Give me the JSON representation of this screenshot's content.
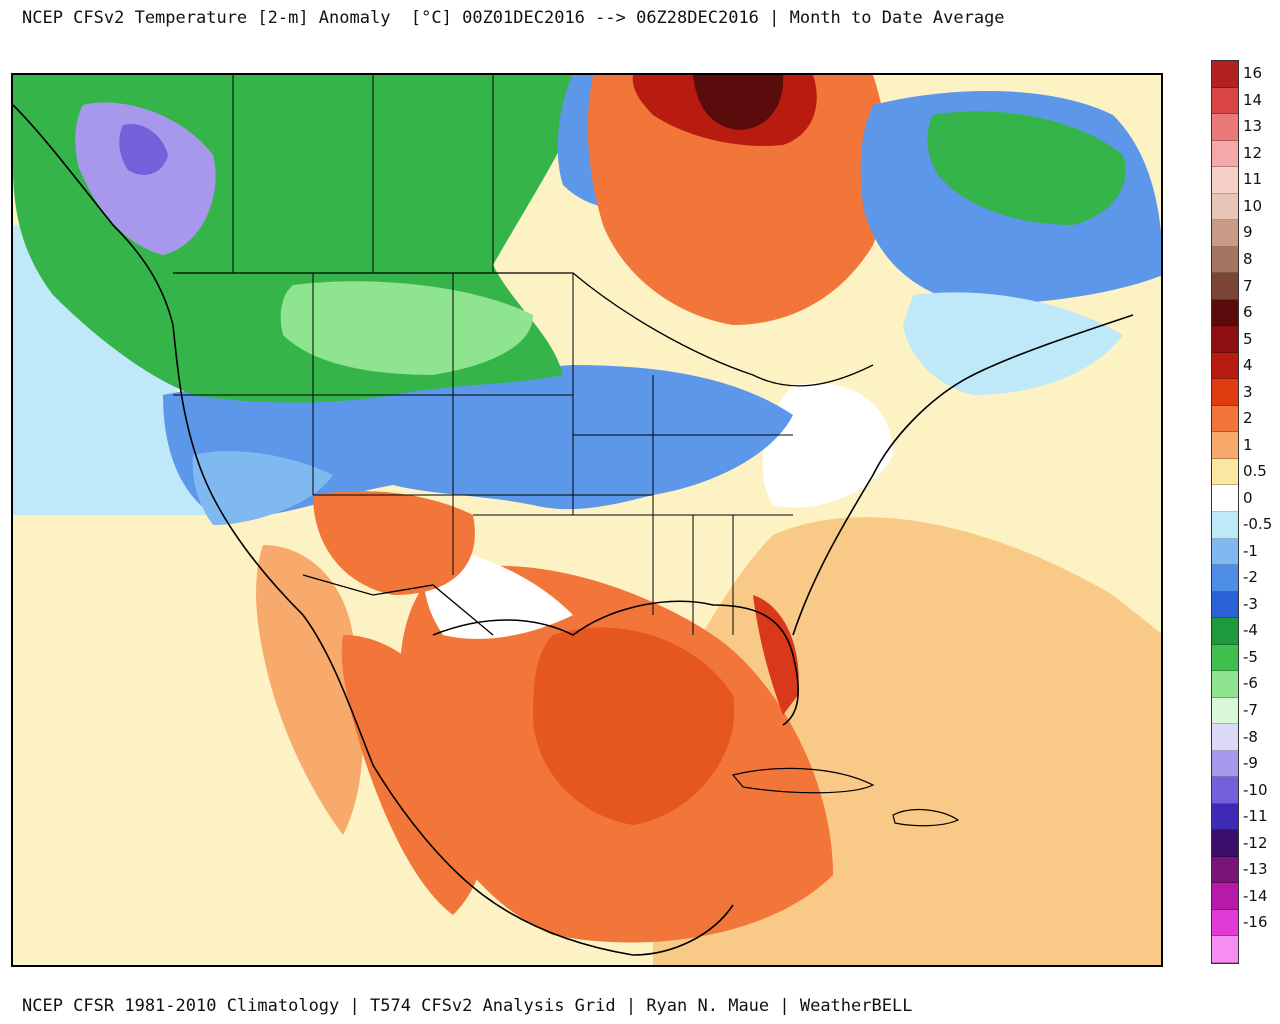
{
  "title": "NCEP CFSv2 Temperature [2-m] Anomaly  [°C] 00Z01DEC2016 --> 06Z28DEC2016 | Month to Date Average",
  "footer": "NCEP CFSR 1981-2010 Climatology | T574 CFSv2 Analysis Grid | Ryan N. Maue | WeatherBELL",
  "legend": {
    "items": [
      {
        "label": "16",
        "color": "#b22222"
      },
      {
        "label": "14",
        "color": "#d94545"
      },
      {
        "label": "13",
        "color": "#ea7a7a"
      },
      {
        "label": "12",
        "color": "#f4a8a8"
      },
      {
        "label": "11",
        "color": "#f8d0ca"
      },
      {
        "label": "10",
        "color": "#e7c6b8"
      },
      {
        "label": "9",
        "color": "#c89b87"
      },
      {
        "label": "8",
        "color": "#a67562"
      },
      {
        "label": "7",
        "color": "#7a4534"
      },
      {
        "label": "6",
        "color": "#5a0c0c"
      },
      {
        "label": "5",
        "color": "#8e1010"
      },
      {
        "label": "4",
        "color": "#b81c10"
      },
      {
        "label": "3",
        "color": "#e03c12"
      },
      {
        "label": "2",
        "color": "#f2763a"
      },
      {
        "label": "1",
        "color": "#f7aa6c"
      },
      {
        "label": "0.5",
        "color": "#fce7a2"
      },
      {
        "label": "0",
        "color": "#ffffff"
      },
      {
        "label": "-0.5",
        "color": "#bfe8f8"
      },
      {
        "label": "-1",
        "color": "#7fb9f0"
      },
      {
        "label": "-2",
        "color": "#4f8ee6"
      },
      {
        "label": "-3",
        "color": "#2a62d6"
      },
      {
        "label": "-4",
        "color": "#1e9a3c"
      },
      {
        "label": "-5",
        "color": "#3fc04e"
      },
      {
        "label": "-6",
        "color": "#8fe48f"
      },
      {
        "label": "-7",
        "color": "#d8f8d8"
      },
      {
        "label": "-8",
        "color": "#dcd8f8"
      },
      {
        "label": "-9",
        "color": "#a898ec"
      },
      {
        "label": "-10",
        "color": "#7460d8"
      },
      {
        "label": "-11",
        "color": "#3f2ab8"
      },
      {
        "label": "-12",
        "color": "#3a0e6a"
      },
      {
        "label": "-13",
        "color": "#7a1478"
      },
      {
        "label": "-14",
        "color": "#b51aa8"
      },
      {
        "label": "-16",
        "color": "#e23ad6"
      },
      {
        "label": "",
        "color": "#f58ef0"
      }
    ]
  },
  "colors": {
    "ocean_warm": "#fdf2c4",
    "ocean_mild": "#f9c987",
    "gulf_warm": "#f07a3e",
    "cold_blue": "#5d97ea",
    "green_cold": "#35b44a",
    "purple_cold": "#a898ec",
    "hudson_hot": "#7a0a0a"
  }
}
